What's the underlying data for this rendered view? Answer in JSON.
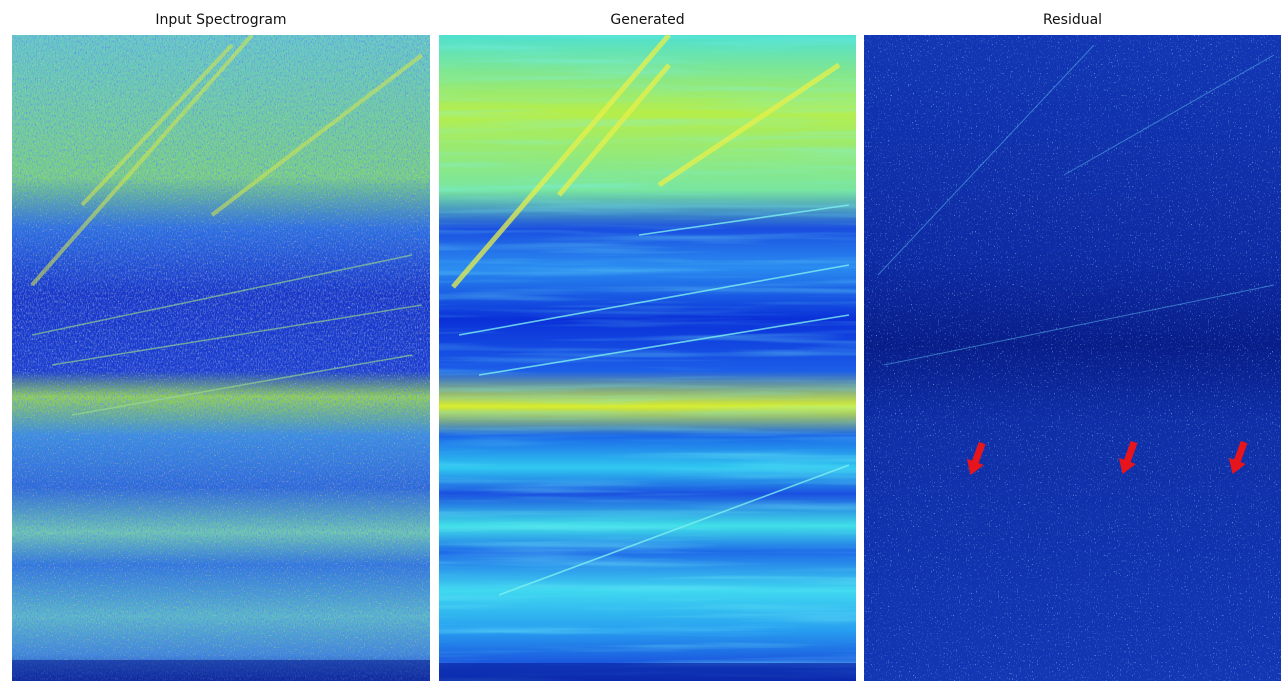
{
  "panels": [
    {
      "title": "Input Spectrogram"
    },
    {
      "title": "Generated"
    },
    {
      "title": "Residual"
    }
  ],
  "annotations": {
    "residual_arrow_count": 3,
    "arrow_color": "#e8141b"
  },
  "colors": {
    "colormap": "jet",
    "deep_blue": "#0a1e8c",
    "blue": "#1040d8",
    "cyan": "#2fd9f0",
    "yellow": "#e6f02a",
    "orange": "#f0a020"
  }
}
